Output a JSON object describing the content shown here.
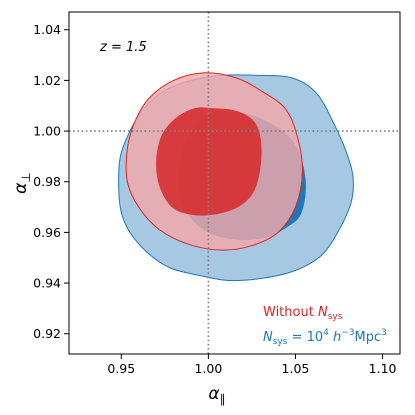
{
  "chart_data": {
    "type": "contour",
    "xlim": [
      0.92,
      1.11
    ],
    "ylim": [
      0.912,
      1.047
    ],
    "xticks": [
      0.95,
      1.0,
      1.05,
      1.1
    ],
    "xtick_labels": [
      "0.95",
      "1.00",
      "1.05",
      "1.10"
    ],
    "yticks": [
      0.92,
      0.94,
      0.96,
      0.98,
      1.0,
      1.02,
      1.04
    ],
    "ytick_labels": [
      "0.92",
      "0.94",
      "0.96",
      "0.98",
      "1.00",
      "1.02",
      "1.04"
    ],
    "xlabel": "α",
    "xlabel_sub": "∥",
    "ylabel": "α",
    "ylabel_sub": "⊥",
    "reference_lines": {
      "x": 1.0,
      "y": 1.0,
      "style": "dotted",
      "color": "#808080"
    },
    "annotation": {
      "text": "z = 1.5"
    },
    "legend_placement": "bottom-right",
    "series": [
      {
        "name": "N_sys = 10^4 h^-3 Mpc^3",
        "legend_text": {
          "lhs": "N",
          "lhs_sub": "sys",
          "eq": " = 10",
          "exp1": "4",
          "mid": " h",
          "exp2": "−3",
          "tail": "Mpc",
          "exp3": "3"
        },
        "color": "#1f77b4",
        "inner_fill": "#1f77b4",
        "outer_fill": "#a6c8e2",
        "outer_contour": [
          [
            1.028,
            1.022
          ],
          [
            1.048,
            1.021
          ],
          [
            1.062,
            1.015
          ],
          [
            1.072,
            1.003
          ],
          [
            1.079,
            0.992
          ],
          [
            1.083,
            0.982
          ],
          [
            1.082,
            0.972
          ],
          [
            1.075,
            0.961
          ],
          [
            1.065,
            0.951
          ],
          [
            1.05,
            0.945
          ],
          [
            1.032,
            0.942
          ],
          [
            1.012,
            0.941
          ],
          [
            0.995,
            0.943
          ],
          [
            0.978,
            0.946
          ],
          [
            0.965,
            0.952
          ],
          [
            0.955,
            0.96
          ],
          [
            0.95,
            0.968
          ],
          [
            0.9485,
            0.978
          ],
          [
            0.9495,
            0.99
          ],
          [
            0.955,
            1.0
          ],
          [
            0.963,
            1.009
          ],
          [
            0.975,
            1.016
          ],
          [
            0.99,
            1.02
          ],
          [
            1.008,
            1.022
          ]
        ],
        "inner_contour": [
          [
            1.003,
            1.007
          ],
          [
            1.02,
            1.007
          ],
          [
            1.033,
            1.004
          ],
          [
            1.046,
            0.998
          ],
          [
            1.053,
            0.99
          ],
          [
            1.056,
            0.978
          ],
          [
            1.053,
            0.967
          ],
          [
            1.045,
            0.962
          ],
          [
            1.033,
            0.958
          ],
          [
            1.018,
            0.957
          ],
          [
            1.003,
            0.959
          ],
          [
            0.992,
            0.964
          ],
          [
            0.985,
            0.972
          ],
          [
            0.983,
            0.982
          ],
          [
            0.986,
            0.994
          ],
          [
            0.994,
            1.003
          ]
        ]
      },
      {
        "name": "Without N_sys",
        "legend_text": {
          "lhs": "Without ",
          "italic": "N",
          "sub": "sys"
        },
        "color": "#d62728",
        "inner_fill": "#d62728",
        "outer_fill": "#f3a8aa",
        "outer_contour": [
          [
            0.998,
            1.023
          ],
          [
            1.016,
            1.021
          ],
          [
            1.03,
            1.016
          ],
          [
            1.044,
            1.009
          ],
          [
            1.051,
            0.998
          ],
          [
            1.054,
            0.984
          ],
          [
            1.05,
            0.97
          ],
          [
            1.04,
            0.96
          ],
          [
            1.026,
            0.955
          ],
          [
            1.009,
            0.953
          ],
          [
            0.99,
            0.955
          ],
          [
            0.972,
            0.961
          ],
          [
            0.96,
            0.97
          ],
          [
            0.9535,
            0.98
          ],
          [
            0.9535,
            0.993
          ],
          [
            0.958,
            1.004
          ],
          [
            0.966,
            1.013
          ],
          [
            0.98,
            1.02
          ]
        ],
        "inner_contour": [
          [
            1.003,
            1.009
          ],
          [
            1.016,
            1.008
          ],
          [
            1.026,
            1.004
          ],
          [
            1.03,
            0.997
          ],
          [
            1.03,
            0.986
          ],
          [
            1.026,
            0.976
          ],
          [
            1.017,
            0.97
          ],
          [
            1.003,
            0.967
          ],
          [
            0.99,
            0.967
          ],
          [
            0.979,
            0.97
          ],
          [
            0.972,
            0.978
          ],
          [
            0.97,
            0.988
          ],
          [
            0.973,
            0.998
          ],
          [
            0.981,
            1.005
          ],
          [
            0.992,
            1.009
          ]
        ]
      }
    ]
  }
}
